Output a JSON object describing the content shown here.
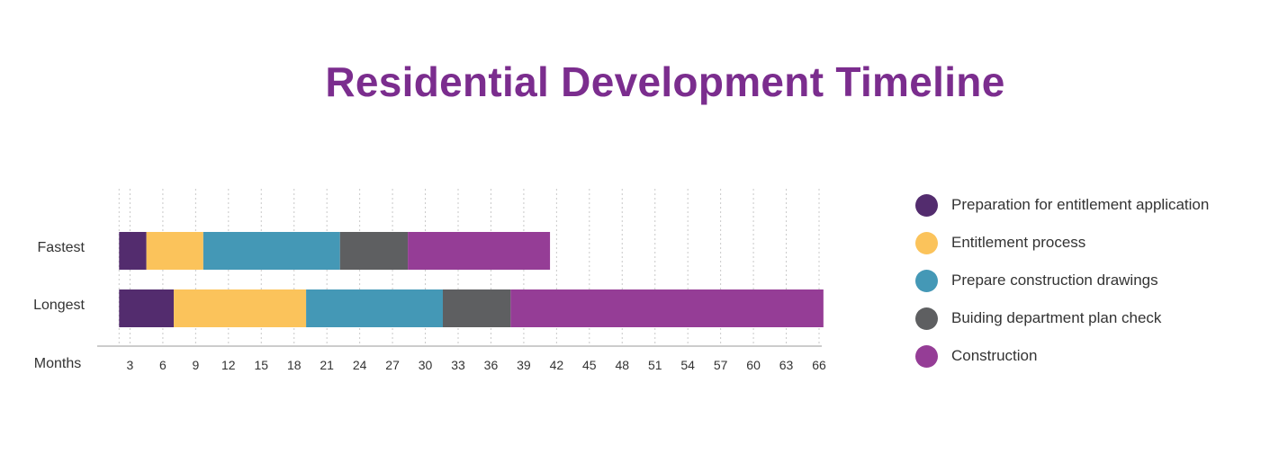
{
  "chart_data": {
    "type": "bar",
    "orientation": "horizontal",
    "stacked": true,
    "title": "Residential Development Timeline",
    "xlabel": "Months",
    "ylabel": "",
    "xlim": [
      2,
      66
    ],
    "xticks": [
      3,
      6,
      9,
      12,
      15,
      18,
      21,
      24,
      27,
      30,
      33,
      36,
      39,
      42,
      45,
      48,
      51,
      54,
      57,
      60,
      63,
      66
    ],
    "categories": [
      "Fastest",
      "Longest"
    ],
    "grid": "vertical dotted",
    "legend_position": "right",
    "series": [
      {
        "name": "Preparation for entitlement application",
        "color": "#532c6e",
        "ranges": [
          [
            2,
            4.5
          ],
          [
            2,
            7
          ]
        ]
      },
      {
        "name": "Entitlement process",
        "color": "#fbc35b",
        "ranges": [
          [
            4.5,
            9.7
          ],
          [
            7,
            19.1
          ]
        ]
      },
      {
        "name": "Prepare construction drawings",
        "color": "#4498b6",
        "ranges": [
          [
            9.7,
            22.2
          ],
          [
            19.1,
            31.6
          ]
        ]
      },
      {
        "name": "Buiding department plan check",
        "color": "#5e5f61",
        "ranges": [
          [
            22.2,
            28.4
          ],
          [
            31.6,
            37.8
          ]
        ]
      },
      {
        "name": "Construction",
        "color": "#953d96",
        "ranges": [
          [
            28.4,
            41.4
          ],
          [
            37.8,
            66.4
          ]
        ]
      }
    ]
  }
}
